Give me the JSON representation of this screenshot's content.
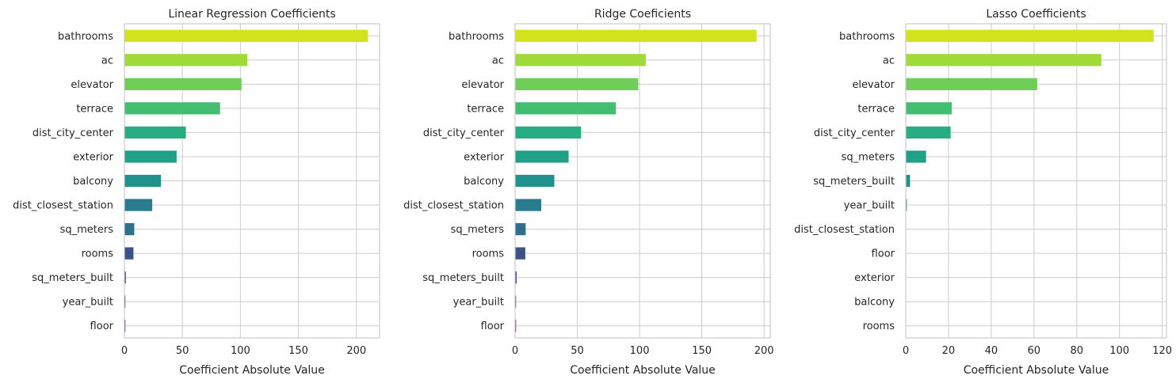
{
  "chart_data": [
    {
      "type": "bar",
      "orientation": "horizontal",
      "title": "Linear Regression Coefficients",
      "xlabel": "Coefficient Absolute Value",
      "ylabel": "",
      "xlim": [
        0,
        220
      ],
      "xticks": [
        0,
        50,
        100,
        150,
        200
      ],
      "grid": true,
      "categories": [
        "bathrooms",
        "ac",
        "elevator",
        "terrace",
        "dist_city_center",
        "exterior",
        "balcony",
        "dist_closest_station",
        "sq_meters",
        "rooms",
        "sq_meters_built",
        "year_built",
        "floor"
      ],
      "values": [
        210,
        106,
        101,
        82.5,
        53,
        45,
        31.5,
        24,
        8.5,
        7.8,
        1.2,
        0.4,
        0.2
      ],
      "colors": [
        "#d2e21b",
        "#a0da39",
        "#6ece58",
        "#42be71",
        "#27ad81",
        "#1fa187",
        "#21918c",
        "#297b8e",
        "#2e6f8e",
        "#3b528b",
        "#46337e",
        "#481b6d",
        "#440154"
      ]
    },
    {
      "type": "bar",
      "orientation": "horizontal",
      "title": "Ridge Coeficients",
      "xlabel": "Coefficient Absolute Value",
      "ylabel": "",
      "xlim": [
        0,
        205
      ],
      "xticks": [
        0,
        50,
        100,
        150,
        200
      ],
      "grid": true,
      "categories": [
        "bathrooms",
        "ac",
        "elevator",
        "terrace",
        "dist_city_center",
        "exterior",
        "balcony",
        "dist_closest_station",
        "sq_meters",
        "rooms",
        "sq_meters_built",
        "year_built",
        "floor"
      ],
      "values": [
        194,
        105,
        99,
        81,
        53,
        43,
        31.5,
        21,
        8.5,
        8.2,
        1.2,
        0.4,
        0.2
      ],
      "colors": [
        "#d2e21b",
        "#a0da39",
        "#6ece58",
        "#42be71",
        "#27ad81",
        "#1fa187",
        "#21918c",
        "#297b8e",
        "#2e6f8e",
        "#3b528b",
        "#46337e",
        "#481b6d",
        "#440154"
      ]
    },
    {
      "type": "bar",
      "orientation": "horizontal",
      "title": "Lasso Coefficients",
      "xlabel": "Coefficient Absolute Value",
      "ylabel": "",
      "xlim": [
        0,
        122
      ],
      "xticks": [
        0,
        20,
        40,
        60,
        80,
        100,
        120
      ],
      "grid": true,
      "categories": [
        "bathrooms",
        "ac",
        "elevator",
        "terrace",
        "dist_city_center",
        "sq_meters",
        "sq_meters_built",
        "year_built",
        "dist_closest_station",
        "floor",
        "exterior",
        "balcony",
        "rooms"
      ],
      "values": [
        116,
        91.5,
        61.5,
        21.5,
        21,
        9.5,
        2,
        0.5,
        0,
        0,
        0,
        0,
        0
      ],
      "colors": [
        "#d2e21b",
        "#a0da39",
        "#6ece58",
        "#42be71",
        "#27ad81",
        "#1fa187",
        "#21918c",
        "#297b8e",
        "#2e6f8e",
        "#3b528b",
        "#46337e",
        "#481b6d",
        "#440154"
      ]
    }
  ]
}
